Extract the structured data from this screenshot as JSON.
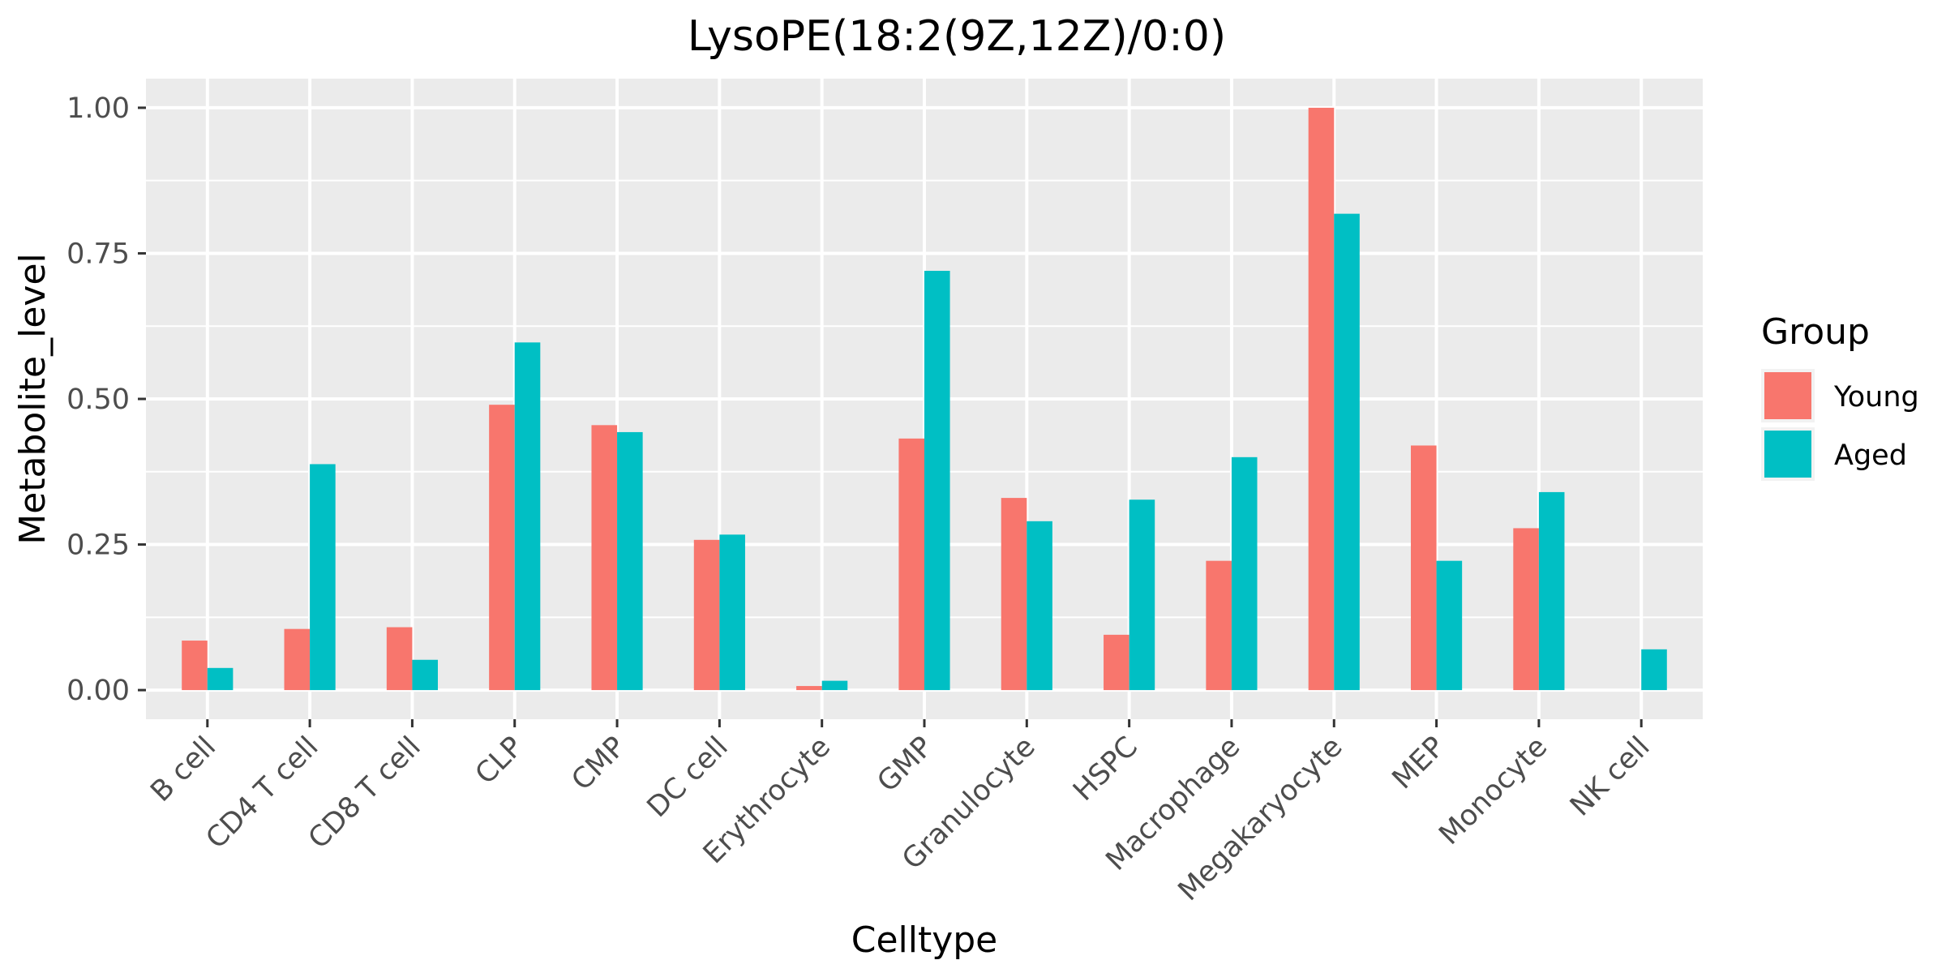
{
  "chart_data": {
    "type": "bar",
    "title": "LysoPE(18:2(9Z,12Z)/0:0)",
    "xlabel": "Celltype",
    "ylabel": "Metabolite_level",
    "ylim": [
      -0.05,
      1.05
    ],
    "yticks": [
      0.0,
      0.25,
      0.5,
      0.75,
      1.0
    ],
    "ytick_labels": [
      "0.00",
      "0.25",
      "0.50",
      "0.75",
      "1.00"
    ],
    "grid": true,
    "legend_title": "Group",
    "legend_position": "right",
    "categories": [
      "B cell",
      "CD4 T cell",
      "CD8 T cell",
      "CLP",
      "CMP",
      "DC cell",
      "Erythrocyte",
      "GMP",
      "Granulocyte",
      "HSPC",
      "Macrophage",
      "Megakaryocyte",
      "MEP",
      "Monocyte",
      "NK cell"
    ],
    "series": [
      {
        "name": "Young",
        "color": "#F8766D",
        "values": [
          0.085,
          0.105,
          0.108,
          0.49,
          0.455,
          0.258,
          0.007,
          0.432,
          0.33,
          0.095,
          0.222,
          1.0,
          0.42,
          0.278,
          0.0
        ]
      },
      {
        "name": "Aged",
        "color": "#00BFC4",
        "values": [
          0.038,
          0.388,
          0.052,
          0.597,
          0.443,
          0.267,
          0.016,
          0.72,
          0.29,
          0.327,
          0.4,
          0.818,
          0.222,
          0.34,
          0.07
        ]
      }
    ]
  }
}
